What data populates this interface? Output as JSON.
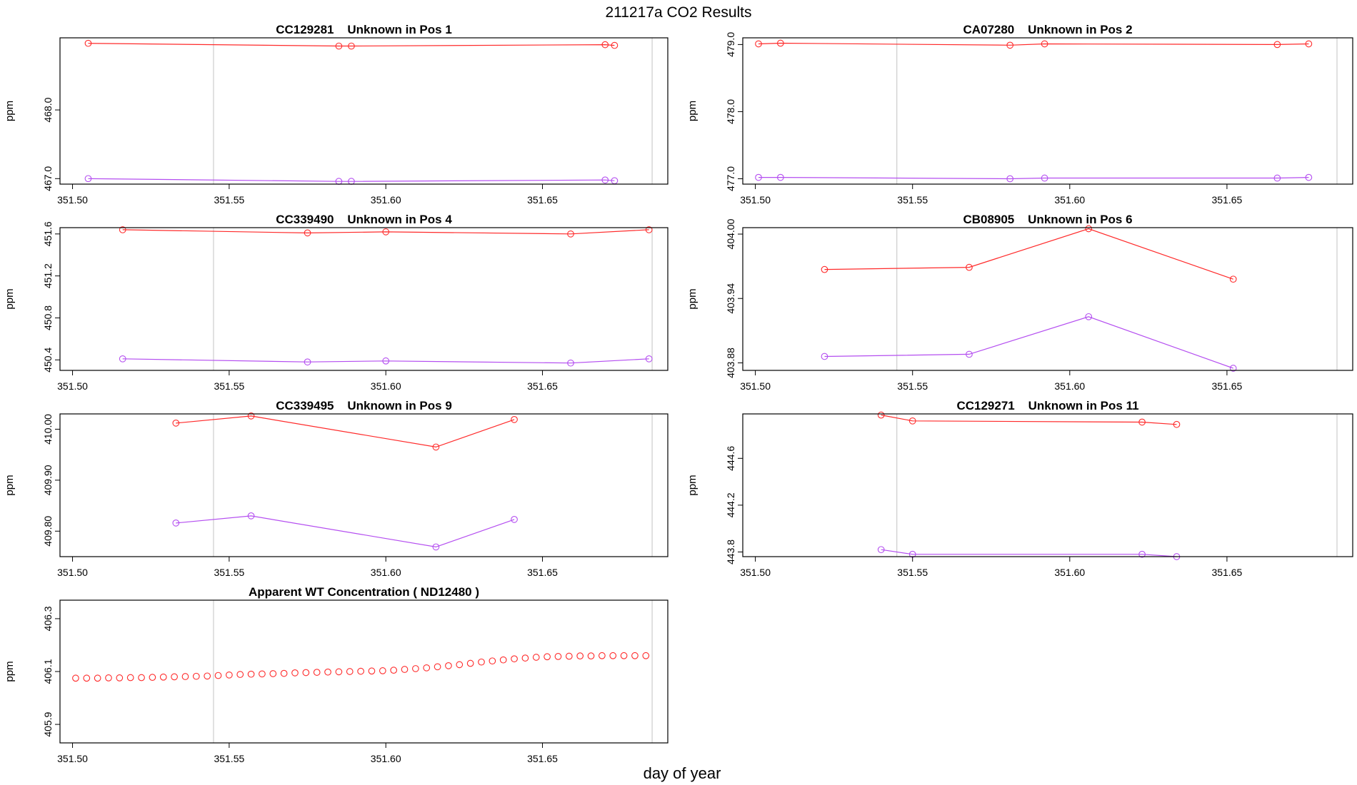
{
  "figure": {
    "title": "211217a  CO2 Results",
    "xlabel": "day of year"
  },
  "colors": {
    "series_a": "#ff2a2a",
    "series_b": "#b44ef0",
    "vline": "#cccccc",
    "frame": "#000000"
  },
  "chart_data": [
    {
      "type": "line",
      "title": "CC129281    Unknown in Pos 1",
      "ylabel": "ppm",
      "xlim": [
        351.496,
        351.69
      ],
      "ylim": [
        466.92,
        469.05
      ],
      "x_ticks": [
        "351.50",
        "351.55",
        "351.60",
        "351.65"
      ],
      "x_tick_values": [
        351.5,
        351.55,
        351.6,
        351.65
      ],
      "y_ticks": [
        "467.0",
        "468.0"
      ],
      "y_tick_values": [
        467.0,
        468.0
      ],
      "vlines": [
        351.545,
        351.685
      ],
      "series": [
        {
          "x": [
            351.505,
            351.585,
            351.589,
            351.67,
            351.673
          ],
          "y": [
            468.97,
            468.93,
            468.93,
            468.95,
            468.94
          ]
        },
        {
          "x": [
            351.505,
            351.585,
            351.589,
            351.67,
            351.673
          ],
          "y": [
            467.0,
            466.96,
            466.96,
            466.98,
            466.97
          ]
        }
      ]
    },
    {
      "type": "line",
      "title": "CA07280    Unknown in Pos 2",
      "ylabel": "ppm",
      "xlim": [
        351.496,
        351.69
      ],
      "ylim": [
        476.92,
        479.1
      ],
      "x_ticks": [
        "351.50",
        "351.55",
        "351.60",
        "351.65"
      ],
      "x_tick_values": [
        351.5,
        351.55,
        351.6,
        351.65
      ],
      "y_ticks": [
        "477.0",
        "478.0",
        "479.0"
      ],
      "y_tick_values": [
        477.0,
        478.0,
        479.0
      ],
      "vlines": [
        351.545,
        351.685
      ],
      "series": [
        {
          "x": [
            351.501,
            351.508,
            351.581,
            351.592,
            351.666,
            351.676
          ],
          "y": [
            479.01,
            479.02,
            478.99,
            479.01,
            479.0,
            479.01
          ]
        },
        {
          "x": [
            351.501,
            351.508,
            351.581,
            351.592,
            351.666,
            351.676
          ],
          "y": [
            477.02,
            477.02,
            477.0,
            477.01,
            477.01,
            477.02
          ]
        }
      ]
    },
    {
      "type": "line",
      "title": "CC339490    Unknown in Pos 4",
      "ylabel": "ppm",
      "xlim": [
        351.496,
        351.69
      ],
      "ylim": [
        450.3,
        451.66
      ],
      "x_ticks": [
        "351.50",
        "351.55",
        "351.60",
        "351.65"
      ],
      "x_tick_values": [
        351.5,
        351.55,
        351.6,
        351.65
      ],
      "y_ticks": [
        "450.4",
        "450.8",
        "451.2",
        "451.6"
      ],
      "y_tick_values": [
        450.4,
        450.8,
        451.2,
        451.6
      ],
      "vlines": [
        351.545,
        351.685
      ],
      "series": [
        {
          "x": [
            351.516,
            351.575,
            351.6,
            351.659,
            351.684
          ],
          "y": [
            451.64,
            451.61,
            451.62,
            451.6,
            451.64
          ]
        },
        {
          "x": [
            351.516,
            351.575,
            351.6,
            351.659,
            351.684
          ],
          "y": [
            450.41,
            450.38,
            450.39,
            450.37,
            450.41
          ]
        }
      ]
    },
    {
      "type": "line",
      "title": "CB08905    Unknown in Pos 6",
      "ylabel": "ppm",
      "xlim": [
        351.496,
        351.69
      ],
      "ylim": [
        403.873,
        404.006
      ],
      "x_ticks": [
        "351.50",
        "351.55",
        "351.60",
        "351.65"
      ],
      "x_tick_values": [
        351.5,
        351.55,
        351.6,
        351.65
      ],
      "y_ticks": [
        "403.88",
        "403.94",
        "404.00"
      ],
      "y_tick_values": [
        403.88,
        403.94,
        404.0
      ],
      "vlines": [
        351.545,
        351.685
      ],
      "series": [
        {
          "x": [
            351.522,
            351.568,
            351.606,
            351.652
          ],
          "y": [
            403.967,
            403.969,
            404.005,
            403.958
          ]
        },
        {
          "x": [
            351.522,
            351.568,
            351.606,
            351.652
          ],
          "y": [
            403.886,
            403.888,
            403.923,
            403.875
          ]
        }
      ]
    },
    {
      "type": "line",
      "title": "CC339495    Unknown in Pos 9",
      "ylabel": "ppm",
      "xlim": [
        351.496,
        351.69
      ],
      "ylim": [
        409.75,
        410.03
      ],
      "x_ticks": [
        "351.50",
        "351.55",
        "351.60",
        "351.65"
      ],
      "x_tick_values": [
        351.5,
        351.55,
        351.6,
        351.65
      ],
      "y_ticks": [
        "409.80",
        "409.90",
        "410.00"
      ],
      "y_tick_values": [
        409.8,
        409.9,
        410.0
      ],
      "vlines": [
        351.545,
        351.685
      ],
      "series": [
        {
          "x": [
            351.533,
            351.557,
            351.616,
            351.641
          ],
          "y": [
            410.012,
            410.026,
            409.965,
            410.019
          ]
        },
        {
          "x": [
            351.533,
            351.557,
            351.616,
            351.641
          ],
          "y": [
            409.816,
            409.83,
            409.769,
            409.823
          ]
        }
      ]
    },
    {
      "type": "line",
      "title": "CC129271    Unknown in Pos 11",
      "ylabel": "ppm",
      "xlim": [
        351.496,
        351.69
      ],
      "ylim": [
        443.76,
        444.98
      ],
      "x_ticks": [
        "351.50",
        "351.55",
        "351.60",
        "351.65"
      ],
      "x_tick_values": [
        351.5,
        351.55,
        351.6,
        351.65
      ],
      "y_ticks": [
        "443.8",
        "444.2",
        "444.6"
      ],
      "y_tick_values": [
        443.8,
        444.2,
        444.6
      ],
      "vlines": [
        351.545,
        351.685
      ],
      "series": [
        {
          "x": [
            351.54,
            351.55,
            351.623,
            351.634
          ],
          "y": [
            444.97,
            444.92,
            444.91,
            444.89
          ]
        },
        {
          "x": [
            351.54,
            351.55,
            351.623,
            351.634
          ],
          "y": [
            443.82,
            443.78,
            443.78,
            443.76
          ]
        }
      ]
    },
    {
      "type": "scatter",
      "title": "Apparent WT Concentration ( ND12480 )",
      "ylabel": "ppm",
      "xlim": [
        351.496,
        351.69
      ],
      "ylim": [
        405.83,
        406.37
      ],
      "x_ticks": [
        "351.50",
        "351.55",
        "351.60",
        "351.65"
      ],
      "x_tick_values": [
        351.5,
        351.55,
        351.6,
        351.65
      ],
      "y_ticks": [
        "405.9",
        "406.1",
        "406.3"
      ],
      "y_tick_values": [
        405.9,
        406.1,
        406.3
      ],
      "vlines": [
        351.545,
        351.685
      ],
      "series": [
        {
          "x": [
            351.501,
            351.5045,
            351.508,
            351.5115,
            351.515,
            351.5185,
            351.522,
            351.5255,
            351.529,
            351.5325,
            351.536,
            351.5395,
            351.543,
            351.5465,
            351.55,
            351.5535,
            351.557,
            351.5605,
            351.564,
            351.5675,
            351.571,
            351.5745,
            351.578,
            351.5815,
            351.585,
            351.5885,
            351.592,
            351.5955,
            351.599,
            351.6025,
            351.606,
            351.6095,
            351.613,
            351.6165,
            351.62,
            351.6235,
            351.627,
            351.6305,
            351.634,
            351.6375,
            351.641,
            351.6445,
            351.648,
            351.6515,
            351.655,
            351.6585,
            351.662,
            351.6655,
            351.669,
            351.6725,
            351.676,
            351.6795,
            351.683
          ],
          "y": [
            406.075,
            406.075,
            406.075,
            406.076,
            406.076,
            406.077,
            406.077,
            406.078,
            406.079,
            406.08,
            406.081,
            406.082,
            406.083,
            406.085,
            406.087,
            406.089,
            406.09,
            406.091,
            406.092,
            406.093,
            406.095,
            406.096,
            406.097,
            406.098,
            406.099,
            406.1,
            406.101,
            406.102,
            406.103,
            406.105,
            406.108,
            406.111,
            406.114,
            406.118,
            406.122,
            406.126,
            406.131,
            406.136,
            406.14,
            406.144,
            406.148,
            406.151,
            406.154,
            406.156,
            406.157,
            406.158,
            406.159,
            406.159,
            406.16,
            406.16,
            406.16,
            406.16,
            406.16
          ]
        }
      ]
    }
  ]
}
